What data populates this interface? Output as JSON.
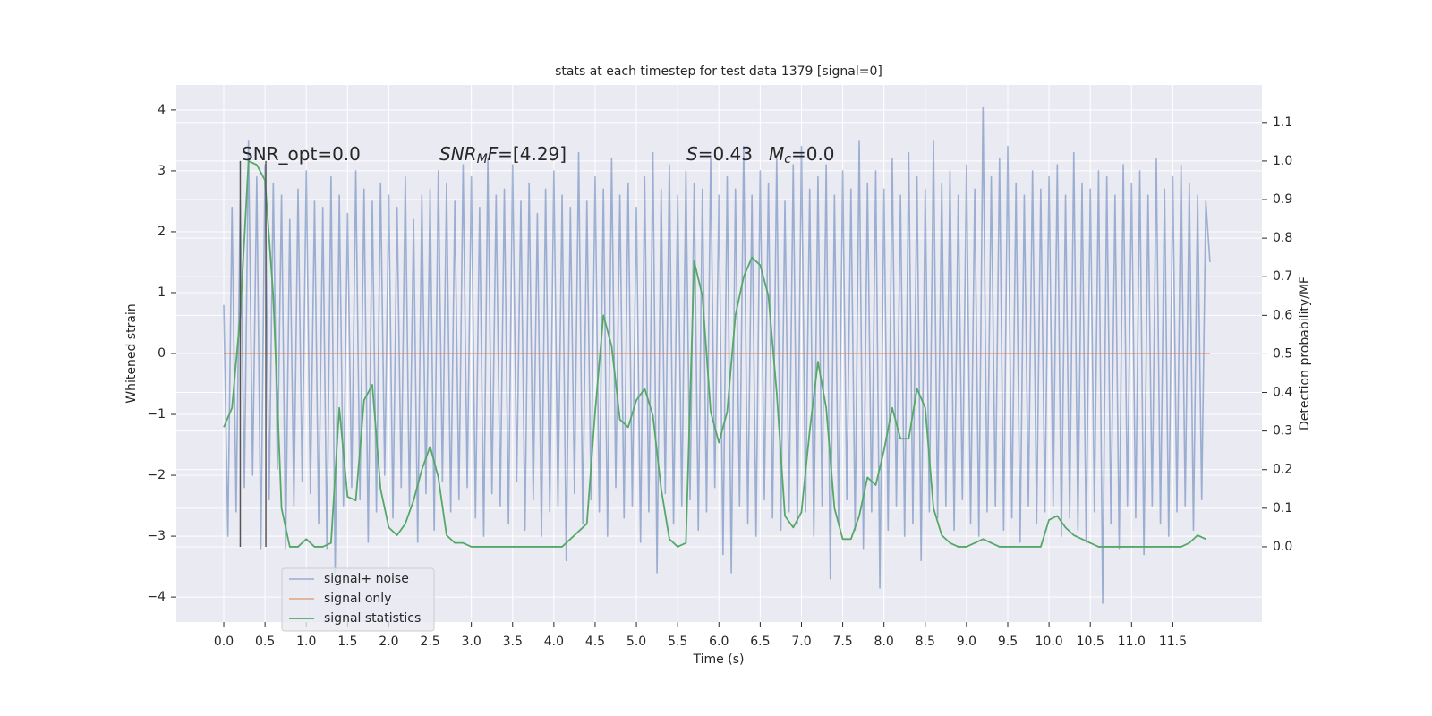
{
  "chart_data": {
    "type": "line",
    "title": "stats at each timestep for test data 1379 [signal=0]",
    "xlabel": "Time (s)",
    "ylabel": "Whitened strain",
    "y2label": "Detection probability/MF",
    "xlim": [
      -0.575,
      12.58
    ],
    "ylim": [
      -4.41,
      4.41
    ],
    "y2lim": [
      -0.195,
      1.197
    ],
    "xticks": [
      {
        "value": 0,
        "label": "0.0"
      },
      0.5,
      {
        "value": 1,
        "label": "1.0"
      },
      1.5,
      {
        "value": 2,
        "label": "2.0"
      },
      2.5,
      {
        "value": 3,
        "label": "3.0"
      },
      3.5,
      {
        "value": 4,
        "label": "4.0"
      },
      4.5,
      {
        "value": 5,
        "label": "5.0"
      },
      5.5,
      {
        "value": 6,
        "label": "6.0"
      },
      6.5,
      {
        "value": 7,
        "label": "7.0"
      },
      7.5,
      {
        "value": 8,
        "label": "8.0"
      },
      8.5,
      {
        "value": 9,
        "label": "9.0"
      },
      9.5,
      {
        "value": 10,
        "label": "10.0"
      },
      10.5,
      {
        "value": 11,
        "label": "11.0"
      },
      11.5
    ],
    "yticks": [
      {
        "value": -4,
        "label": "−4"
      },
      {
        "value": -3,
        "label": "−3"
      },
      {
        "value": -2,
        "label": "−2"
      },
      {
        "value": -1,
        "label": "−1"
      },
      0,
      1,
      2,
      3,
      4
    ],
    "y2ticks": [
      {
        "value": 0,
        "label": "0.0"
      },
      0.1,
      0.2,
      0.3,
      0.4,
      0.5,
      0.6,
      0.7,
      0.8,
      0.9,
      {
        "value": 1,
        "label": "1.0"
      },
      1.1
    ],
    "grid": true,
    "legend": "lower left",
    "series": [
      {
        "name": "signal+ noise",
        "color": "#4c72b0",
        "axis": "y",
        "x": [
          0,
          0.05,
          0.1,
          0.15,
          0.2,
          0.25,
          0.3,
          0.35,
          0.4,
          0.45,
          0.5,
          0.55,
          0.6,
          0.65,
          0.7,
          0.75,
          0.8,
          0.85,
          0.9,
          0.95,
          1,
          1.05,
          1.1,
          1.15,
          1.2,
          1.25,
          1.3,
          1.35,
          1.4,
          1.45,
          1.5,
          1.55,
          1.6,
          1.65,
          1.7,
          1.75,
          1.8,
          1.85,
          1.9,
          1.95,
          2,
          2.05,
          2.1,
          2.15,
          2.2,
          2.25,
          2.3,
          2.35,
          2.4,
          2.45,
          2.5,
          2.55,
          2.6,
          2.65,
          2.7,
          2.75,
          2.8,
          2.85,
          2.9,
          2.95,
          3,
          3.05,
          3.1,
          3.15,
          3.2,
          3.25,
          3.3,
          3.35,
          3.4,
          3.45,
          3.5,
          3.55,
          3.6,
          3.65,
          3.7,
          3.75,
          3.8,
          3.85,
          3.9,
          3.95,
          4,
          4.05,
          4.1,
          4.15,
          4.2,
          4.25,
          4.3,
          4.35,
          4.4,
          4.45,
          4.5,
          4.55,
          4.6,
          4.65,
          4.7,
          4.75,
          4.8,
          4.85,
          4.9,
          4.95,
          5,
          5.05,
          5.1,
          5.15,
          5.2,
          5.25,
          5.3,
          5.35,
          5.4,
          5.45,
          5.5,
          5.55,
          5.6,
          5.65,
          5.7,
          5.75,
          5.8,
          5.85,
          5.9,
          5.95,
          6,
          6.05,
          6.1,
          6.15,
          6.2,
          6.25,
          6.3,
          6.35,
          6.4,
          6.45,
          6.5,
          6.55,
          6.6,
          6.65,
          6.7,
          6.75,
          6.8,
          6.85,
          6.9,
          6.95,
          7,
          7.05,
          7.1,
          7.15,
          7.2,
          7.25,
          7.3,
          7.35,
          7.4,
          7.45,
          7.5,
          7.55,
          7.6,
          7.65,
          7.7,
          7.75,
          7.8,
          7.85,
          7.9,
          7.95,
          8,
          8.05,
          8.1,
          8.15,
          8.2,
          8.25,
          8.3,
          8.35,
          8.4,
          8.45,
          8.5,
          8.55,
          8.6,
          8.65,
          8.7,
          8.75,
          8.8,
          8.85,
          8.9,
          8.95,
          9,
          9.05,
          9.1,
          9.15,
          9.2,
          9.25,
          9.3,
          9.35,
          9.4,
          9.45,
          9.5,
          9.55,
          9.6,
          9.65,
          9.7,
          9.75,
          9.8,
          9.85,
          9.9,
          9.95,
          10,
          10.05,
          10.1,
          10.15,
          10.2,
          10.25,
          10.3,
          10.35,
          10.4,
          10.45,
          10.5,
          10.55,
          10.6,
          10.65,
          10.7,
          10.75,
          10.8,
          10.85,
          10.9,
          10.95,
          11,
          11.05,
          11.1,
          11.15,
          11.2,
          11.25,
          11.3,
          11.35,
          11.4,
          11.45,
          11.5,
          11.55,
          11.6,
          11.65,
          11.7,
          11.75,
          11.8,
          11.85,
          11.9,
          11.95
        ],
        "values": [
          0.8,
          -3.0,
          2.4,
          -2.6,
          2.5,
          -2.2,
          3.5,
          -2.0,
          2.9,
          -3.2,
          3.1,
          -2.4,
          2.8,
          -1.9,
          2.6,
          -3.2,
          2.2,
          -2.5,
          2.7,
          -2.1,
          3.0,
          -2.3,
          2.5,
          -2.8,
          2.4,
          -3.2,
          2.9,
          -3.6,
          2.6,
          -2.5,
          2.3,
          -2.2,
          3.0,
          -2.4,
          2.7,
          -3.1,
          2.5,
          -2.6,
          2.8,
          -2.0,
          2.6,
          -2.7,
          2.4,
          -2.2,
          2.9,
          -2.5,
          2.2,
          -3.1,
          2.6,
          -2.3,
          2.7,
          -2.9,
          3.0,
          -2.1,
          2.8,
          -2.6,
          2.5,
          -2.4,
          3.1,
          -2.2,
          2.9,
          -2.7,
          2.4,
          -3.0,
          3.2,
          -2.3,
          2.6,
          -2.5,
          2.7,
          -2.8,
          3.1,
          -2.1,
          2.5,
          -2.9,
          2.8,
          -2.4,
          2.3,
          -3.0,
          2.7,
          -2.6,
          3.0,
          -2.5,
          2.6,
          -3.4,
          2.4,
          -2.3,
          3.3,
          -2.8,
          2.5,
          -2.4,
          2.9,
          -2.6,
          2.7,
          -3.0,
          3.2,
          -2.2,
          2.6,
          -2.7,
          2.8,
          -2.5,
          2.4,
          -3.1,
          2.9,
          -2.6,
          3.3,
          -3.6,
          2.7,
          -2.3,
          3.1,
          -2.8,
          2.6,
          -2.5,
          3.0,
          -2.4,
          2.8,
          -2.9,
          2.7,
          -2.6,
          3.2,
          -2.2,
          2.6,
          -3.3,
          2.9,
          -3.6,
          2.7,
          -2.5,
          3.4,
          -2.8,
          2.6,
          -3.0,
          3.0,
          -2.4,
          2.8,
          -2.7,
          3.2,
          -2.9,
          2.5,
          -2.6,
          3.1,
          -2.8,
          3.4,
          -2.6,
          2.7,
          -3.0,
          2.9,
          -2.5,
          3.1,
          -3.7,
          2.6,
          -2.8,
          3.0,
          -2.4,
          2.7,
          -2.9,
          3.5,
          -3.2,
          2.8,
          -2.6,
          3.0,
          -3.85,
          2.7,
          -2.9,
          3.2,
          -2.5,
          2.6,
          -3.0,
          3.3,
          -2.8,
          2.9,
          -3.4,
          2.7,
          -2.6,
          3.5,
          -2.7,
          2.8,
          -2.5,
          3.0,
          -2.9,
          2.6,
          -2.4,
          3.1,
          -2.8,
          2.7,
          -3.0,
          4.05,
          -2.6,
          2.9,
          -2.5,
          3.2,
          -2.9,
          3.4,
          -2.7,
          2.8,
          -3.1,
          2.6,
          -2.5,
          3.0,
          -2.8,
          2.7,
          -2.6,
          2.9,
          -2.5,
          3.1,
          -3.0,
          2.6,
          -2.7,
          3.3,
          -2.9,
          2.8,
          -3.1,
          2.7,
          -2.6,
          3.0,
          -4.1,
          2.9,
          -2.8,
          2.6,
          -3.2,
          3.1,
          -2.5,
          2.8,
          -2.7,
          3.0,
          -3.3,
          2.6,
          -2.5,
          3.2,
          -2.8,
          2.7,
          -3.0,
          2.9,
          -2.6,
          3.1,
          -2.5,
          2.8,
          -2.9,
          2.6,
          -2.4,
          2.5,
          1.5
        ]
      },
      {
        "name": "signal only",
        "color": "#dd8452",
        "axis": "y",
        "x": [
          0,
          11.95
        ],
        "values": [
          0,
          0
        ]
      },
      {
        "name": "signal statistics",
        "color": "#55a868",
        "axis": "y2",
        "x": [
          0,
          0.1,
          0.2,
          0.3,
          0.4,
          0.5,
          0.6,
          0.7,
          0.8,
          0.9,
          1,
          1.1,
          1.2,
          1.3,
          1.4,
          1.5,
          1.6,
          1.7,
          1.8,
          1.9,
          2,
          2.1,
          2.2,
          2.3,
          2.4,
          2.5,
          2.6,
          2.7,
          2.8,
          2.9,
          3,
          3.1,
          3.2,
          3.3,
          3.4,
          3.5,
          3.6,
          3.7,
          3.8,
          3.9,
          4,
          4.1,
          4.2,
          4.3,
          4.4,
          4.5,
          4.6,
          4.7,
          4.8,
          4.9,
          5,
          5.1,
          5.2,
          5.3,
          5.4,
          5.5,
          5.6,
          5.7,
          5.8,
          5.9,
          6,
          6.1,
          6.2,
          6.3,
          6.4,
          6.5,
          6.6,
          6.7,
          6.8,
          6.9,
          7,
          7.1,
          7.2,
          7.3,
          7.4,
          7.5,
          7.6,
          7.7,
          7.8,
          7.9,
          8,
          8.1,
          8.2,
          8.3,
          8.4,
          8.5,
          8.6,
          8.7,
          8.8,
          8.9,
          9,
          9.1,
          9.2,
          9.3,
          9.4,
          9.5,
          9.6,
          9.7,
          9.8,
          9.9,
          10,
          10.1,
          10.2,
          10.3,
          10.4,
          10.5,
          10.6,
          10.7,
          10.8,
          10.9,
          11,
          11.1,
          11.2,
          11.3,
          11.4,
          11.5,
          11.6,
          11.7,
          11.8,
          11.9
        ],
        "values": [
          0.31,
          0.36,
          0.6,
          1.0,
          0.99,
          0.95,
          0.65,
          0.1,
          0,
          0,
          0.02,
          0,
          0,
          0.01,
          0.36,
          0.13,
          0.12,
          0.38,
          0.42,
          0.15,
          0.05,
          0.03,
          0.06,
          0.12,
          0.2,
          0.26,
          0.18,
          0.03,
          0.01,
          0.01,
          0,
          0,
          0,
          0,
          0,
          0,
          0,
          0,
          0,
          0,
          0,
          0,
          0.02,
          0.04,
          0.06,
          0.35,
          0.6,
          0.52,
          0.33,
          0.31,
          0.38,
          0.41,
          0.34,
          0.15,
          0.02,
          0,
          0.01,
          0.74,
          0.65,
          0.35,
          0.27,
          0.35,
          0.6,
          0.7,
          0.75,
          0.73,
          0.65,
          0.4,
          0.08,
          0.05,
          0.09,
          0.3,
          0.48,
          0.36,
          0.1,
          0.02,
          0.02,
          0.08,
          0.18,
          0.16,
          0.25,
          0.36,
          0.28,
          0.28,
          0.41,
          0.36,
          0.1,
          0.03,
          0.01,
          0,
          0,
          0.01,
          0.02,
          0.01,
          0,
          0,
          0,
          0,
          0,
          0,
          0.07,
          0.08,
          0.05,
          0.03,
          0.02,
          0.01,
          0,
          0,
          0,
          0,
          0,
          0,
          0,
          0,
          0,
          0,
          0,
          0.01,
          0.03,
          0.02
        ]
      }
    ],
    "vlines": {
      "x": [
        0.2,
        0.51
      ],
      "y2": [
        0,
        1
      ],
      "color": "#555555"
    },
    "annotations": [
      [
        {
          "text": "SNR_opt=0.0"
        }
      ],
      [
        {
          "text": "SNR",
          "style": "italic"
        },
        {
          "text": "M",
          "style": "sub"
        },
        {
          "text": "F",
          "style": "italic"
        },
        {
          "text": "=[4.29]"
        }
      ],
      [
        {
          "text": "S",
          "style": "italic"
        },
        {
          "text": "=0.43"
        }
      ],
      [
        {
          "text": "M",
          "style": "italic"
        },
        {
          "text": "c",
          "style": "sub"
        },
        {
          "text": "=0.0"
        }
      ]
    ]
  }
}
